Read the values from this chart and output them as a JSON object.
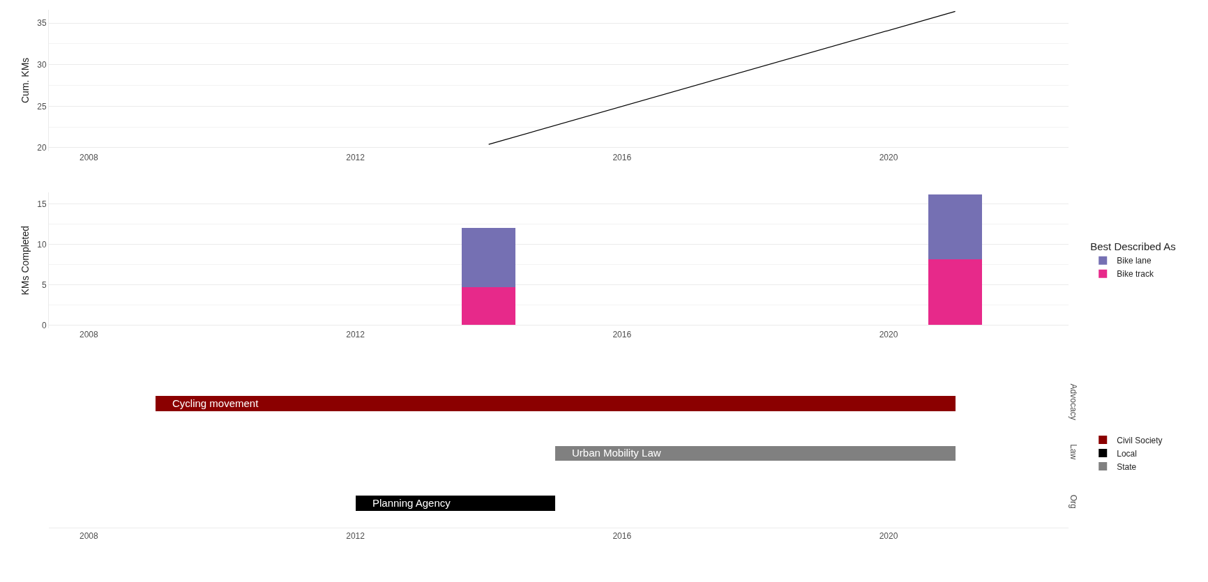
{
  "chart_data": [
    {
      "type": "line",
      "ylabel": "Cum. KMs",
      "series": [
        {
          "color": "#000000",
          "x": [
            2014,
            2021
          ],
          "values": [
            20.4,
            36.4
          ]
        }
      ],
      "xlim": [
        2007.4,
        2022.7
      ],
      "xticks": [
        2008,
        2012,
        2016,
        2020
      ],
      "ylim": [
        19.6,
        36.6
      ],
      "yticks": [
        20,
        25,
        30,
        35
      ],
      "grid": "y",
      "marker": "none"
    },
    {
      "type": "bar",
      "stacked": true,
      "ylabel": "KMs Completed",
      "legend_title": "Best Described As",
      "legend": "right",
      "x": [
        2014,
        2021
      ],
      "series": [
        {
          "name": "Bike track",
          "color": "#e7298a",
          "values": [
            4.7,
            8.1
          ]
        },
        {
          "name": "Bike lane",
          "color": "#7570b3",
          "values": [
            7.3,
            8.0
          ]
        }
      ],
      "xlim": [
        2007.4,
        2022.7
      ],
      "xticks": [
        2008,
        2012,
        2016,
        2020
      ],
      "ylim": [
        -0.4,
        16.4
      ],
      "yticks": [
        0,
        5,
        10,
        15
      ],
      "grid": "y"
    },
    {
      "type": "bar",
      "orientation": "horizontal",
      "legend": "right",
      "categories": [
        "Advocacy",
        "Law",
        "Org"
      ],
      "series": [
        {
          "name": "Civil Society",
          "color": "#8b0000",
          "values": [
            12,
            null,
            null
          ],
          "base": [
            2009,
            null,
            null
          ]
        },
        {
          "name": "Local",
          "color": "#000000",
          "values": [
            null,
            null,
            3
          ],
          "base": [
            null,
            null,
            2012
          ]
        },
        {
          "name": "State",
          "color": "#808080",
          "values": [
            null,
            6,
            null
          ],
          "base": [
            null,
            2015,
            null
          ]
        }
      ],
      "annotations": [
        "Cycling movement",
        "Urban Mobility Law",
        "Planning Agency"
      ],
      "xlim": [
        2007.4,
        2022.7
      ],
      "xticks": [
        2008,
        2012,
        2016,
        2020
      ],
      "grid": false
    }
  ]
}
